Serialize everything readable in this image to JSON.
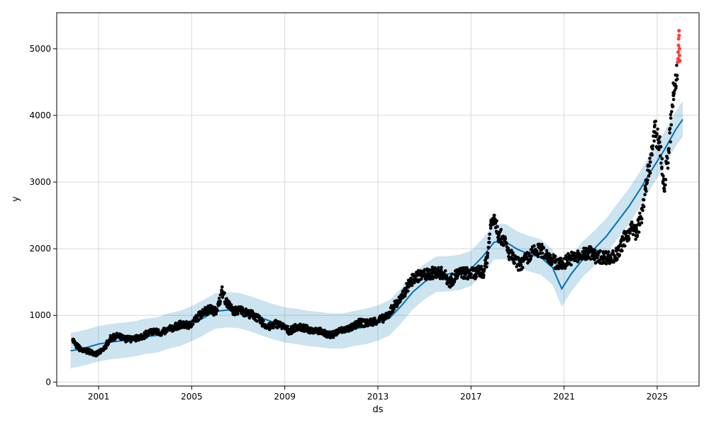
{
  "chart_data": {
    "type": "scatter",
    "xlabel": "ds",
    "ylabel": "y",
    "xlim": [
      1999.2,
      2026.8
    ],
    "ylim": [
      -60,
      5540
    ],
    "x_ticks": [
      2001,
      2005,
      2009,
      2013,
      2017,
      2021,
      2025
    ],
    "x_tick_labels": [
      "2001",
      "2005",
      "2009",
      "2013",
      "2017",
      "2021",
      "2025"
    ],
    "y_ticks": [
      0,
      1000,
      2000,
      3000,
      4000,
      5000
    ],
    "y_tick_labels": [
      "0",
      "1000",
      "2000",
      "3000",
      "4000",
      "5000"
    ],
    "grid": true,
    "legend": "none",
    "colors": {
      "observed": "#000000",
      "forecast_line": "#0072B2",
      "uncertainty_band": "#0072B2",
      "outliers": "#ff2020"
    },
    "series": [
      {
        "role": "observed",
        "x": [
          1999.9,
          2000.0,
          2000.3,
          2000.6,
          2000.9,
          2001.2,
          2001.5,
          2001.8,
          2002.1,
          2002.5,
          2002.9,
          2003.3,
          2003.7,
          2004.1,
          2004.5,
          2004.9,
          2005.2,
          2005.5,
          2005.8,
          2006.0,
          2006.15,
          2006.3,
          2006.5,
          2006.8,
          2007.1,
          2007.4,
          2007.7,
          2008.0,
          2008.3,
          2008.6,
          2008.9,
          2009.2,
          2009.5,
          2009.8,
          2010.1,
          2010.4,
          2010.7,
          2011.0,
          2011.3,
          2011.6,
          2011.9,
          2012.2,
          2012.5,
          2012.8,
          2013.1,
          2013.4,
          2013.7,
          2014.0,
          2014.3,
          2014.6,
          2014.9,
          2015.2,
          2015.5,
          2015.8,
          2016.1,
          2016.4,
          2016.7,
          2017.0,
          2017.3,
          2017.55,
          2017.7,
          2017.85,
          2018.0,
          2018.2,
          2018.4,
          2018.6,
          2018.8,
          2019.1,
          2019.4,
          2019.7,
          2020.0,
          2020.3,
          2020.6,
          2020.9,
          2021.2,
          2021.5,
          2021.8,
          2022.1,
          2022.4,
          2022.7,
          2023.0,
          2023.3,
          2023.6,
          2023.9,
          2024.1,
          2024.3,
          2024.5,
          2024.7,
          2024.9,
          2025.1,
          2025.3,
          2025.5,
          2025.7,
          2025.85
        ],
        "y": [
          640,
          560,
          470,
          460,
          420,
          480,
          650,
          690,
          650,
          640,
          690,
          760,
          740,
          800,
          860,
          850,
          950,
          1060,
          1090,
          1060,
          1150,
          1360,
          1200,
          1060,
          1080,
          1030,
          1000,
          900,
          820,
          880,
          840,
          760,
          830,
          810,
          780,
          780,
          730,
          700,
          760,
          790,
          820,
          890,
          880,
          910,
          940,
          980,
          1150,
          1250,
          1450,
          1580,
          1600,
          1620,
          1650,
          1630,
          1500,
          1620,
          1640,
          1620,
          1650,
          1660,
          1870,
          2350,
          2500,
          2200,
          2150,
          1950,
          1850,
          1750,
          1850,
          1950,
          1980,
          1900,
          1800,
          1760,
          1850,
          1870,
          1900,
          1950,
          1870,
          1880,
          1860,
          1920,
          2150,
          2300,
          2250,
          2450,
          2900,
          3300,
          3750,
          3600,
          2900,
          3500,
          4300,
          4600
        ]
      },
      {
        "role": "forecast",
        "x": [
          1999.8,
          2000.0,
          2000.5,
          2001.0,
          2001.5,
          2002.0,
          2002.5,
          2003.0,
          2003.5,
          2004.0,
          2004.5,
          2005.0,
          2005.5,
          2006.0,
          2006.5,
          2007.0,
          2007.5,
          2008.0,
          2008.5,
          2009.0,
          2009.5,
          2010.0,
          2010.5,
          2011.0,
          2011.5,
          2012.0,
          2012.5,
          2013.0,
          2013.5,
          2014.0,
          2014.5,
          2015.0,
          2015.5,
          2016.0,
          2016.5,
          2017.0,
          2017.5,
          2018.0,
          2018.5,
          2019.0,
          2019.5,
          2020.0,
          2020.5,
          2020.9,
          2021.3,
          2021.8,
          2022.3,
          2022.8,
          2023.3,
          2023.8,
          2024.3,
          2024.8,
          2025.3,
          2025.8,
          2026.1
        ],
        "y": [
          470,
          480,
          520,
          570,
          600,
          620,
          640,
          680,
          700,
          760,
          800,
          870,
          960,
          1060,
          1080,
          1070,
          1020,
          960,
          900,
          850,
          830,
          800,
          780,
          760,
          760,
          800,
          830,
          880,
          960,
          1140,
          1350,
          1500,
          1610,
          1620,
          1640,
          1700,
          1880,
          2100,
          2100,
          1990,
          1920,
          1870,
          1720,
          1400,
          1620,
          1840,
          2000,
          2180,
          2410,
          2640,
          2910,
          3200,
          3480,
          3790,
          3940
        ]
      },
      {
        "role": "uncertainty",
        "x": [
          1999.8,
          2000.0,
          2000.5,
          2001.0,
          2001.5,
          2002.0,
          2002.5,
          2003.0,
          2003.5,
          2004.0,
          2004.5,
          2005.0,
          2005.5,
          2006.0,
          2006.5,
          2007.0,
          2007.5,
          2008.0,
          2008.5,
          2009.0,
          2009.5,
          2010.0,
          2010.5,
          2011.0,
          2011.5,
          2012.0,
          2012.5,
          2013.0,
          2013.5,
          2014.0,
          2014.5,
          2015.0,
          2015.5,
          2016.0,
          2016.5,
          2017.0,
          2017.5,
          2018.0,
          2018.5,
          2019.0,
          2019.5,
          2020.0,
          2020.5,
          2020.9,
          2021.3,
          2021.8,
          2022.3,
          2022.8,
          2023.3,
          2023.8,
          2024.3,
          2024.8,
          2025.3,
          2025.8,
          2026.1
        ],
        "lower": [
          200,
          220,
          260,
          310,
          340,
          360,
          380,
          420,
          440,
          500,
          540,
          610,
          700,
          800,
          820,
          810,
          760,
          700,
          640,
          590,
          570,
          540,
          520,
          500,
          500,
          540,
          570,
          620,
          700,
          880,
          1090,
          1240,
          1350,
          1360,
          1380,
          1440,
          1620,
          1840,
          1840,
          1730,
          1660,
          1610,
          1460,
          1130,
          1350,
          1580,
          1740,
          1920,
          2150,
          2380,
          2650,
          2950,
          3230,
          3540,
          3680
        ],
        "upper": [
          740,
          750,
          790,
          840,
          870,
          890,
          910,
          950,
          970,
          1030,
          1070,
          1140,
          1230,
          1330,
          1350,
          1340,
          1290,
          1230,
          1170,
          1120,
          1100,
          1070,
          1050,
          1030,
          1030,
          1070,
          1100,
          1150,
          1230,
          1410,
          1620,
          1770,
          1880,
          1890,
          1910,
          1970,
          2150,
          2370,
          2370,
          2260,
          2190,
          2140,
          1990,
          1680,
          1890,
          2110,
          2270,
          2450,
          2680,
          2910,
          3180,
          3470,
          3750,
          4060,
          4220
        ]
      },
      {
        "role": "outliers",
        "x": [
          2025.88,
          2025.9,
          2025.9,
          2025.92,
          2025.92,
          2025.94,
          2025.94,
          2025.96,
          2025.96,
          2025.98
        ],
        "y": [
          4800,
          4850,
          4950,
          5050,
          5150,
          5200,
          5270,
          4900,
          5000,
          4820
        ]
      }
    ]
  }
}
